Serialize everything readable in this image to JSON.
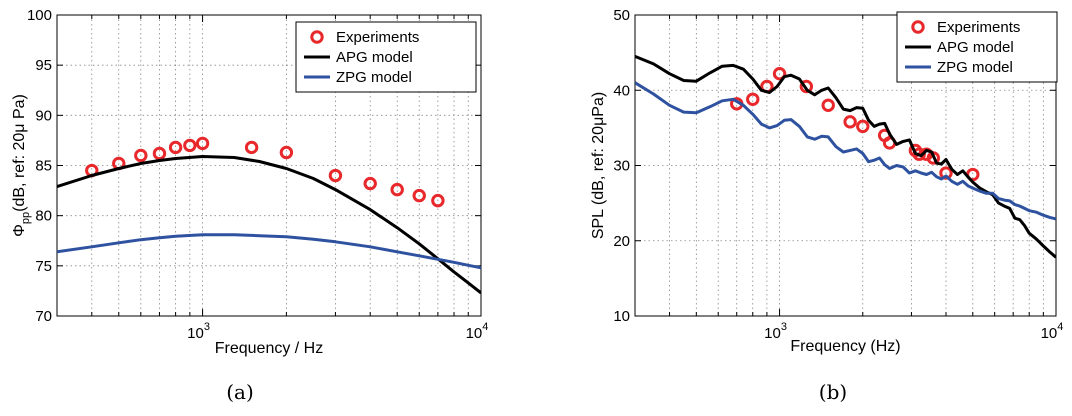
{
  "colors": {
    "experiments": "#e8282b",
    "apg": "#000000",
    "zpg": "#2e52a0"
  },
  "chart_data": [
    {
      "type": "line",
      "panel_label": "(a)",
      "xlabel": "Frequency / Hz",
      "ylabel_main": "Φ",
      "ylabel_sub": "pp",
      "ylabel_rest": "(dB, ref: 20μ Pa)",
      "xscale": "log",
      "xlim": [
        300,
        10000
      ],
      "ylim": [
        70,
        100
      ],
      "yticks": [
        70,
        75,
        80,
        85,
        90,
        95,
        100
      ],
      "xticks": [
        {
          "value": 1000,
          "base": "10",
          "exp": "3"
        },
        {
          "value": 10000,
          "base": "10",
          "exp": "4"
        }
      ],
      "grid": true,
      "legend_position": "top-right",
      "series": [
        {
          "name": "Experiments",
          "kind": "markers",
          "x": [
            400,
            500,
            600,
            700,
            800,
            900,
            1000,
            1500,
            2000,
            3000,
            4000,
            5000,
            6000,
            7000
          ],
          "y": [
            84.5,
            85.2,
            86.0,
            86.2,
            86.8,
            87.0,
            87.2,
            86.8,
            86.3,
            84.0,
            83.2,
            82.6,
            82.0,
            81.5
          ]
        },
        {
          "name": "APG model",
          "kind": "line",
          "x": [
            300,
            400,
            500,
            600,
            700,
            800,
            1000,
            1300,
            1600,
            2000,
            2500,
            3000,
            4000,
            5000,
            6000,
            7000,
            8000,
            9000,
            10000
          ],
          "y": [
            82.9,
            84.0,
            84.7,
            85.2,
            85.5,
            85.7,
            85.9,
            85.8,
            85.4,
            84.7,
            83.7,
            82.6,
            80.6,
            78.8,
            77.2,
            75.7,
            74.4,
            73.3,
            72.3
          ]
        },
        {
          "name": "ZPG model",
          "kind": "line",
          "x": [
            300,
            400,
            500,
            600,
            700,
            800,
            1000,
            1300,
            1600,
            2000,
            2500,
            3000,
            4000,
            5000,
            6000,
            7000,
            8000,
            9000,
            10000
          ],
          "y": [
            76.4,
            76.9,
            77.3,
            77.6,
            77.8,
            77.95,
            78.1,
            78.1,
            78.0,
            77.9,
            77.65,
            77.4,
            76.9,
            76.4,
            76.0,
            75.65,
            75.35,
            75.05,
            74.8
          ]
        }
      ]
    },
    {
      "type": "line",
      "panel_label": "(b)",
      "xlabel": "Frequency (Hz)",
      "ylabel": "SPL (dB, ref: 20μPa)",
      "xscale": "log",
      "xlim": [
        300,
        10000
      ],
      "ylim": [
        10,
        50
      ],
      "yticks": [
        10,
        20,
        30,
        40,
        50
      ],
      "xticks": [
        {
          "value": 1000,
          "base": "10",
          "exp": "3"
        },
        {
          "value": 10000,
          "base": "10",
          "exp": "4"
        }
      ],
      "grid": true,
      "legend_position": "top-right",
      "series": [
        {
          "name": "Experiments",
          "kind": "markers",
          "x": [
            700,
            800,
            900,
            1000,
            1250,
            1500,
            1800,
            2000,
            2400,
            2500,
            3100,
            3200,
            3400,
            3600,
            4000,
            5000
          ],
          "y": [
            38.2,
            38.8,
            40.5,
            42.2,
            40.5,
            38.0,
            35.8,
            35.2,
            34.0,
            33.0,
            32.0,
            31.5,
            31.5,
            31.0,
            29.0,
            28.8
          ]
        },
        {
          "name": "APG model",
          "kind": "line",
          "x": [
            300,
            350,
            400,
            450,
            500,
            560,
            620,
            680,
            740,
            800,
            860,
            920,
            980,
            1040,
            1100,
            1180,
            1260,
            1340,
            1420,
            1500,
            1600,
            1700,
            1800,
            1900,
            2000,
            2100,
            2200,
            2300,
            2400,
            2500,
            2650,
            2800,
            2950,
            3100,
            3250,
            3400,
            3550,
            3700,
            3850,
            4000,
            4200,
            4400,
            4600,
            4800,
            5000,
            5300,
            5600,
            5900,
            6200,
            6500,
            6800,
            7100,
            7400,
            7700,
            8000,
            8500,
            9000,
            9500,
            10000
          ],
          "y": [
            44.5,
            43.5,
            42.2,
            41.3,
            41.2,
            42.3,
            43.2,
            43.3,
            42.8,
            41.5,
            40.0,
            39.7,
            40.5,
            41.8,
            42.0,
            41.5,
            40.0,
            39.4,
            40.0,
            40.3,
            39.0,
            37.5,
            37.3,
            37.7,
            37.6,
            36.0,
            35.2,
            35.5,
            35.6,
            34.2,
            32.8,
            33.2,
            33.4,
            31.6,
            31.3,
            32.0,
            31.8,
            30.3,
            30.2,
            30.8,
            29.5,
            28.8,
            29.3,
            28.5,
            27.8,
            27.0,
            26.5,
            26.1,
            25.0,
            24.6,
            24.3,
            23.0,
            22.8,
            22.0,
            21.0,
            20.2,
            19.3,
            18.5,
            17.8
          ]
        },
        {
          "name": "ZPG model",
          "kind": "line",
          "x": [
            300,
            350,
            400,
            450,
            500,
            560,
            620,
            680,
            740,
            800,
            860,
            920,
            980,
            1040,
            1100,
            1180,
            1260,
            1340,
            1420,
            1500,
            1600,
            1700,
            1800,
            1900,
            2000,
            2100,
            2200,
            2300,
            2400,
            2500,
            2650,
            2800,
            2950,
            3100,
            3250,
            3400,
            3550,
            3700,
            3850,
            4000,
            4200,
            4400,
            4600,
            4800,
            5000,
            5300,
            5600,
            5900,
            6200,
            6500,
            6800,
            7100,
            7400,
            7700,
            8000,
            8500,
            9000,
            9500,
            10000
          ],
          "y": [
            41.0,
            39.5,
            38.0,
            37.1,
            37.0,
            37.8,
            38.6,
            38.8,
            38.0,
            36.8,
            35.5,
            35.0,
            35.3,
            36.0,
            36.1,
            35.2,
            33.8,
            33.5,
            33.9,
            33.8,
            32.5,
            31.8,
            32.0,
            32.2,
            31.6,
            30.5,
            30.7,
            31.0,
            30.1,
            29.6,
            30.0,
            29.8,
            29.0,
            29.3,
            29.0,
            28.8,
            29.1,
            28.5,
            28.2,
            28.6,
            27.9,
            27.5,
            27.9,
            27.3,
            27.0,
            26.6,
            26.3,
            26.3,
            25.6,
            25.4,
            25.3,
            24.8,
            24.6,
            24.3,
            24.0,
            23.8,
            23.4,
            23.1,
            22.9
          ]
        }
      ]
    }
  ]
}
